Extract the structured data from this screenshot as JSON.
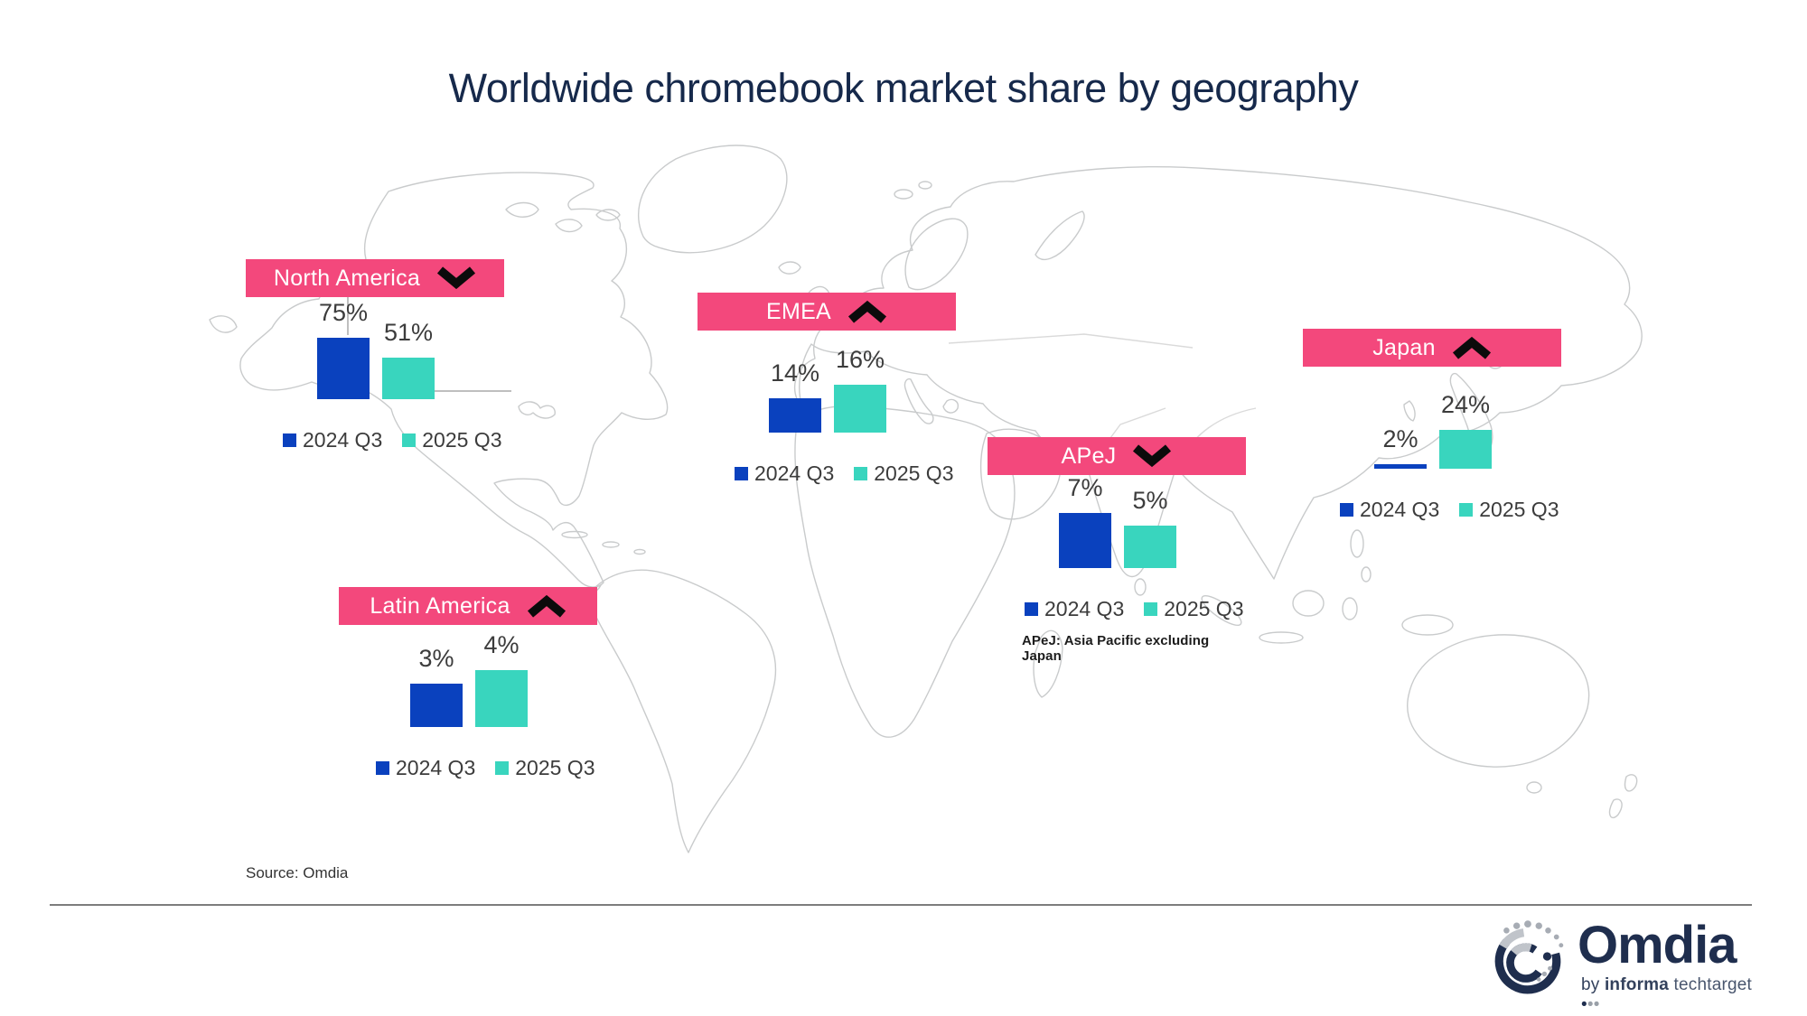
{
  "title": "Worldwide chromebook market share by geography",
  "source": "Source: Omdia",
  "colors": {
    "pink": "#F3487C",
    "blue": "#0A41BE",
    "teal": "#39D5BE",
    "navy": "#16294B",
    "text": "#3C3C3C",
    "map_outline": "#C9CBCC"
  },
  "logo": {
    "brand": "Omdia",
    "tag_by": "by",
    "tag_informa": "informa",
    "tag_techtarget": "techtarget"
  },
  "chart_data": {
    "type": "bar",
    "title": "Worldwide chromebook market share by geography",
    "unit": "%",
    "series_labels": [
      "2024 Q3",
      "2025 Q3"
    ],
    "legend_position": "below-each-region",
    "background": "world-map-outline",
    "regions": [
      {
        "name": "North America",
        "trend": "down",
        "values": [
          75,
          51
        ]
      },
      {
        "name": "EMEA",
        "trend": "up",
        "values": [
          14,
          16
        ]
      },
      {
        "name": "Japan",
        "trend": "up",
        "values": [
          2,
          24
        ]
      },
      {
        "name": "APeJ",
        "trend": "down",
        "values": [
          7,
          5
        ],
        "footnote": "APeJ: Asia Pacific excluding Japan"
      },
      {
        "name": "Latin America",
        "trend": "up",
        "values": [
          3,
          4
        ]
      }
    ],
    "source": "Source: Omdia"
  }
}
